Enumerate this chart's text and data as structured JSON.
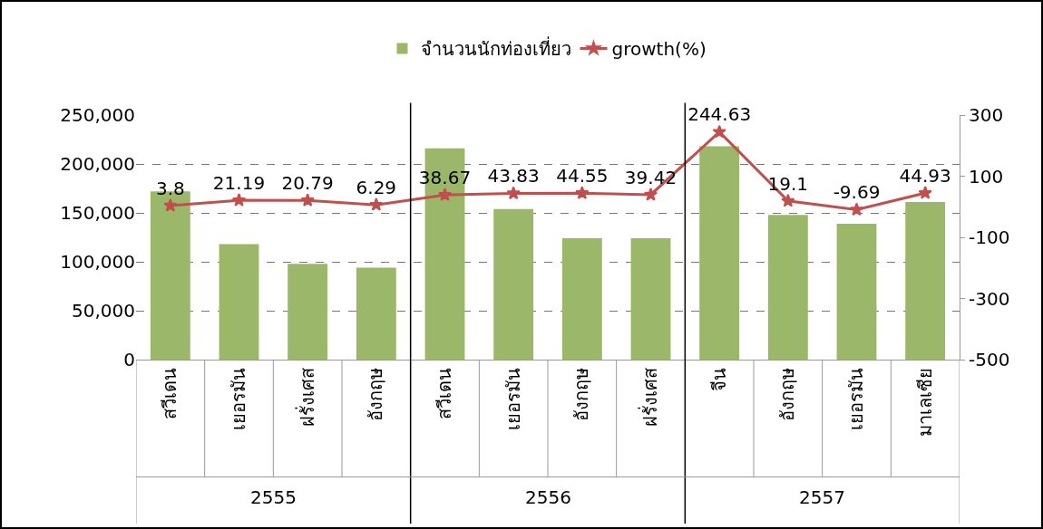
{
  "chart_data": {
    "type": "bar",
    "categories": [
      "สวีเดน",
      "เยอรมัน",
      "ฝรั่งเศส",
      "อังกฤษ",
      "สวีเดน",
      "เยอรมัน",
      "อังกฤษ",
      "ฝรั่งเศส",
      "จีน",
      "อังกฤษ",
      "เยอรมัน",
      "มาเลเซีย"
    ],
    "series": [
      {
        "name": "จำนวนนักท่องเที่ยว",
        "color": "#9bb86a",
        "values": [
          172000,
          118000,
          98000,
          94000,
          216000,
          154000,
          124000,
          124000,
          218000,
          148000,
          139000,
          161000
        ]
      },
      {
        "name": "growth(%)",
        "type": "line",
        "axis": "y2",
        "color": "#c0504d",
        "marker": "star",
        "line_style": "solid",
        "values": [
          3.8,
          21.19,
          20.79,
          6.29,
          38.67,
          43.83,
          44.55,
          39.42,
          244.63,
          19.1,
          -9.69,
          44.93
        ],
        "value_labels": [
          "3.8",
          "21.19",
          "20.79",
          "6.29",
          "38.67",
          "43.83",
          "44.55",
          "39.42",
          "244.63",
          "19.1",
          "-9.69",
          "44.93"
        ]
      }
    ],
    "annotations": [
      "2555",
      "2556",
      "2557"
    ],
    "ylim": [
      0,
      250000
    ],
    "yticks": [
      0,
      {
        "value": 50000,
        "label": "50,000"
      },
      {
        "value": 100000,
        "label": "100,000"
      },
      {
        "value": 150000,
        "label": "150,000"
      },
      {
        "value": 200000,
        "label": "200,000"
      },
      {
        "value": 250000,
        "label": "250,000"
      }
    ],
    "y2lim": [
      -500,
      300
    ],
    "y2ticks": [
      -500,
      -300,
      -100,
      100,
      300
    ],
    "grid": "y",
    "legend": "top"
  }
}
